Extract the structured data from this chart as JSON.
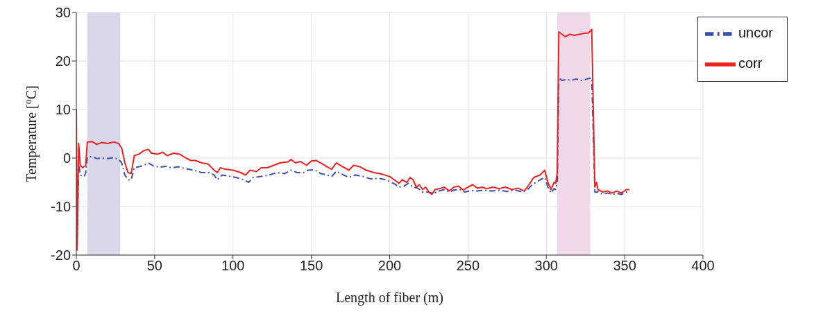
{
  "chart_data": {
    "type": "line",
    "xlabel": "Length of fiber (m)",
    "ylabel": "Temperature [$^{o}$C]",
    "xlim": [
      0,
      400
    ],
    "xticks": [
      0,
      50,
      100,
      150,
      200,
      250,
      300,
      350,
      400
    ],
    "ylim": [
      -20,
      30
    ],
    "yticks": [
      -20,
      -10,
      0,
      10,
      20,
      30
    ],
    "grid": true,
    "legend": "top right",
    "bands": [
      {
        "axis": "x",
        "from": 7,
        "to": 28,
        "color": "#d9d7ea"
      },
      {
        "axis": "x",
        "from": 307,
        "to": 328,
        "color": "#efd8e8"
      }
    ],
    "series": [
      {
        "name": "uncor",
        "color": "#3a4fb0",
        "line_style": "dashdot",
        "x": [
          0,
          0.5,
          1.5,
          2.5,
          5,
          6,
          7,
          10,
          13,
          16,
          20,
          24,
          27,
          29,
          31,
          33,
          35,
          37,
          40,
          43,
          46,
          49,
          53,
          57,
          61,
          65,
          70,
          75,
          80,
          85,
          88,
          90,
          93,
          97,
          102,
          107,
          110,
          113,
          118,
          123,
          128,
          133,
          137,
          141,
          145,
          148,
          152,
          156,
          160,
          163,
          166,
          170,
          174,
          178,
          183,
          188,
          193,
          198,
          203,
          206,
          209,
          212,
          215,
          218,
          221,
          224,
          228,
          231,
          235,
          238,
          241,
          245,
          248,
          252,
          256,
          260,
          265,
          270,
          275,
          280,
          285,
          288,
          291,
          296,
          299,
          301,
          303,
          305,
          306,
          307,
          308,
          310,
          313,
          316,
          319,
          322,
          325,
          327,
          329,
          331,
          333,
          336,
          339,
          342,
          345,
          348,
          351,
          353
        ],
        "values": [
          5,
          -18,
          -1,
          -3.5,
          -3.8,
          -3,
          0.2,
          0.3,
          -0.1,
          0,
          -0.1,
          0.1,
          -0.3,
          -1,
          -3.5,
          -4.5,
          -4.5,
          -2,
          -1.8,
          -1.5,
          -1,
          -1.6,
          -1.9,
          -1.7,
          -2,
          -1.8,
          -2.2,
          -2.5,
          -3,
          -3,
          -3.5,
          -4.5,
          -3.5,
          -3.7,
          -4,
          -4.5,
          -5,
          -4,
          -3.8,
          -3.5,
          -3,
          -3.2,
          -2.5,
          -3,
          -3,
          -2.5,
          -2.4,
          -3.2,
          -3.5,
          -3.8,
          -2.7,
          -3.4,
          -4,
          -3.5,
          -3.8,
          -4.3,
          -4.2,
          -4.5,
          -5.3,
          -6,
          -5.8,
          -5.2,
          -6,
          -6.2,
          -7,
          -7,
          -7.3,
          -6.8,
          -6.5,
          -7,
          -6.6,
          -6.5,
          -7,
          -6.7,
          -6.8,
          -6.6,
          -6.8,
          -6.6,
          -6.9,
          -6.6,
          -7,
          -6.5,
          -5.5,
          -4.5,
          -4,
          -6,
          -7.2,
          -6.3,
          -6.5,
          -5,
          16.5,
          16,
          16.2,
          16,
          16.3,
          16,
          16.2,
          16.4,
          16.5,
          -7,
          -7,
          -7.5,
          -7.2,
          -7.5,
          -7.3,
          -7.5,
          -7,
          -7
        ]
      },
      {
        "name": "corr",
        "color": "#ee2020",
        "line_style": "solid",
        "x": [
          0,
          0.5,
          1.5,
          2.5,
          4,
          6,
          7,
          10,
          13,
          16,
          20,
          24,
          27,
          29,
          31,
          33,
          35,
          37,
          40,
          43,
          46,
          48,
          52,
          55,
          58,
          62,
          66,
          70,
          73,
          76,
          80,
          84,
          88,
          90,
          92,
          95,
          100,
          105,
          108,
          111,
          115,
          118,
          122,
          126,
          130,
          135,
          137,
          140,
          143,
          147,
          150,
          153,
          157,
          160,
          163,
          166,
          170,
          174,
          177,
          181,
          185,
          190,
          195,
          200,
          203,
          206,
          208,
          211,
          213,
          215,
          217,
          219,
          221,
          223,
          225,
          227,
          229,
          232,
          235,
          238,
          241,
          244,
          247,
          250,
          253,
          256,
          259,
          262,
          266,
          270,
          274,
          278,
          282,
          286,
          289,
          292,
          296,
          299,
          301,
          303,
          305,
          306,
          307,
          308,
          310,
          312,
          315,
          318,
          321,
          324,
          327,
          329,
          331,
          332,
          333,
          336,
          339,
          342,
          345,
          348,
          351,
          353
        ],
        "values": [
          10,
          -19,
          3,
          -1.5,
          -2,
          -1.5,
          3.3,
          3.4,
          2.8,
          3.2,
          3,
          3.3,
          3,
          2,
          -1,
          -3,
          -3.2,
          0.5,
          0.8,
          1.5,
          1.8,
          1,
          0.8,
          1.2,
          0.5,
          1,
          0.8,
          0,
          -0.5,
          -0.5,
          -1,
          -1.2,
          -2.5,
          -3,
          -2,
          -2.3,
          -2.5,
          -3,
          -3.5,
          -2.5,
          -2.8,
          -2,
          -2,
          -1.5,
          -1,
          -0.8,
          -0.3,
          -1,
          -0.7,
          -1.5,
          -0.6,
          -0.5,
          -1.2,
          -1.8,
          -2.3,
          -1,
          -1.8,
          -2.5,
          -1.5,
          -1.8,
          -2.5,
          -3,
          -3.3,
          -3.8,
          -4.5,
          -5.2,
          -4.5,
          -5,
          -4,
          -4.5,
          -6,
          -5.5,
          -6.5,
          -6,
          -7,
          -7.5,
          -6.5,
          -6.3,
          -6,
          -6.8,
          -6,
          -5.8,
          -6.6,
          -6,
          -5.5,
          -6.2,
          -6,
          -6.3,
          -6,
          -6.3,
          -6,
          -6.5,
          -6.2,
          -6.8,
          -5.5,
          -4,
          -3.5,
          -2.5,
          -5,
          -6.5,
          -5,
          -5.2,
          -3,
          26,
          25.5,
          25,
          25.5,
          25.3,
          25.5,
          25.7,
          25.8,
          26.5,
          -6,
          -5,
          -6.5,
          -7,
          -6.8,
          -7.2,
          -6.8,
          -7.2,
          -6.5,
          -6.5
        ]
      }
    ]
  }
}
